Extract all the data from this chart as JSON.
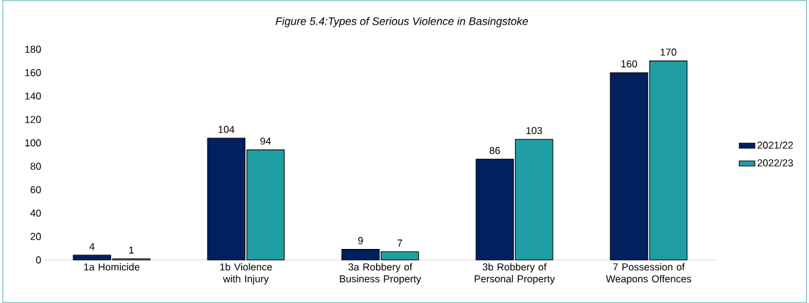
{
  "chart_data": {
    "type": "bar",
    "title": "Figure 5.4:Types of Serious Violence in Basingstoke",
    "categories": [
      "1a Homicide",
      "1b Violence with Injury",
      "3a Robbery of Business Property",
      "3b Robbery of Personal Property",
      "7 Possession of Weapons Offences"
    ],
    "series": [
      {
        "name": "2021/22",
        "color": "#002060",
        "values": [
          4,
          104,
          9,
          86,
          160
        ]
      },
      {
        "name": "2022/23",
        "color": "#1f9ea3",
        "values": [
          1,
          94,
          7,
          103,
          170
        ]
      }
    ],
    "ylim": [
      0,
      180
    ],
    "yticks": [
      0,
      20,
      40,
      60,
      80,
      100,
      120,
      140,
      160,
      180
    ],
    "grid": false,
    "legend": "right",
    "data_labels": true
  }
}
